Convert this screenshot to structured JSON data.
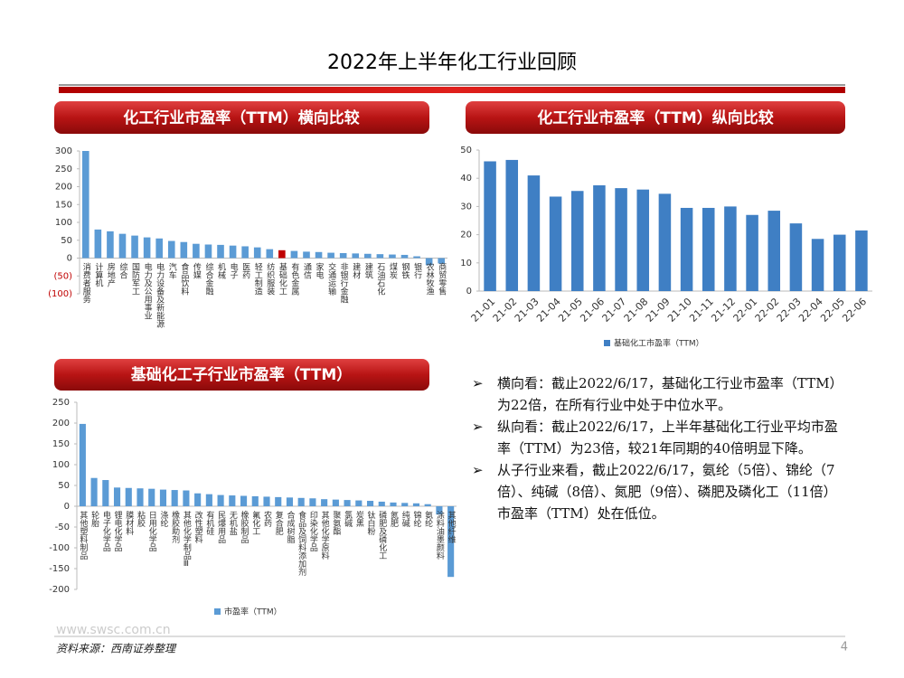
{
  "title": "2022年上半年化工行业回顾",
  "chart_data": [
    {
      "type": "bar",
      "title": "化工行业市盈率（TTM）横向比较",
      "categories": [
        "消费者服务",
        "计算机",
        "房地产",
        "综合",
        "国防军工",
        "电力及公用事业",
        "电力设备及新能源",
        "汽车",
        "食品饮料",
        "传媒",
        "综合金融",
        "机械",
        "电子",
        "医药",
        "轻工制造",
        "纺织服装",
        "基础化工",
        "有色金属",
        "通信",
        "家电",
        "交通运输",
        "非银行金融",
        "建材",
        "建筑",
        "石油石化",
        "煤炭",
        "钢铁",
        "银行",
        "农林牧渔",
        "商贸零售"
      ],
      "values": [
        300,
        80,
        75,
        68,
        63,
        58,
        55,
        48,
        45,
        40,
        38,
        37,
        35,
        33,
        30,
        25,
        22,
        20,
        18,
        17,
        15,
        14,
        13,
        12,
        11,
        10,
        9,
        5,
        -20,
        -15
      ],
      "colors": [
        "#5b9bd5",
        "#5b9bd5",
        "#5b9bd5",
        "#5b9bd5",
        "#5b9bd5",
        "#5b9bd5",
        "#5b9bd5",
        "#5b9bd5",
        "#5b9bd5",
        "#5b9bd5",
        "#5b9bd5",
        "#5b9bd5",
        "#5b9bd5",
        "#5b9bd5",
        "#5b9bd5",
        "#5b9bd5",
        "#c00000",
        "#5b9bd5",
        "#5b9bd5",
        "#5b9bd5",
        "#5b9bd5",
        "#5b9bd5",
        "#5b9bd5",
        "#5b9bd5",
        "#5b9bd5",
        "#5b9bd5",
        "#5b9bd5",
        "#5b9bd5",
        "#5b9bd5",
        "#5b9bd5"
      ],
      "ylim": [
        -100,
        300
      ],
      "yticks": [
        300,
        250,
        200,
        150,
        100,
        50,
        0,
        {
          "value": -50,
          "label": "(50)"
        },
        {
          "value": -100,
          "label": "(100)"
        }
      ],
      "negative_tick_color": "#c00000"
    },
    {
      "type": "bar",
      "title": "化工行业市盈率（TTM）纵向比较",
      "categories": [
        "21-01",
        "21-02",
        "21-03",
        "21-04",
        "21-05",
        "21-06",
        "21-07",
        "21-08",
        "21-09",
        "21-10",
        "21-11",
        "21-12",
        "22-01",
        "22-02",
        "22-03",
        "22-04",
        "22-05",
        "22-06"
      ],
      "series": [
        {
          "name": "基础化工市盈率（TTM）",
          "color": "#3f7fc4",
          "values": [
            46,
            46.5,
            41,
            33.5,
            35.5,
            37.5,
            36.5,
            36,
            34.5,
            29.5,
            29.5,
            30,
            27,
            28.5,
            24,
            18.5,
            20,
            21.5
          ]
        }
      ],
      "ylim": [
        0,
        50
      ],
      "yticks": [
        0,
        10,
        20,
        30,
        40,
        50
      ]
    },
    {
      "type": "bar",
      "title": "基础化工子行业市盈率（TTM）",
      "categories": [
        "其他塑料制品",
        "轮胎",
        "电子化学品",
        "锂电化学品",
        "膜材料",
        "粘胶",
        "日用化学品",
        "涤纶",
        "橡胶助剂",
        "其他化学制品Ⅲ",
        "改性塑料",
        "有机硅",
        "民爆用品",
        "无机盐",
        "橡胶制品",
        "氟化工",
        "农药",
        "复合肥",
        "合成树脂",
        "食品及饲料添加剂",
        "印染化学品",
        "其他化学原料",
        "聚氨酯",
        "氯碱",
        "炭黑",
        "钛白粉",
        "磷肥及磷化工",
        "氮肥",
        "纯碱",
        "锦纶",
        "氨纶",
        "涂料油墨颜料",
        "其他纤维"
      ],
      "series": [
        {
          "name": "市盈率（TTM）",
          "color": "#5b9bd5",
          "values": [
            198,
            68,
            63,
            45,
            44,
            43,
            42,
            40,
            39,
            38,
            31,
            29,
            27,
            26,
            25,
            24,
            23,
            22,
            21,
            20,
            19,
            17,
            16,
            15,
            14,
            13,
            11,
            9,
            8,
            7,
            5,
            -20,
            -170
          ]
        }
      ],
      "ylim": [
        -200,
        250
      ],
      "yticks": [
        250,
        200,
        150,
        100,
        50,
        0,
        -50,
        -100,
        -150,
        -200
      ]
    }
  ],
  "bullets": [
    "横向看：截止2022/6/17，基础化工行业市盈率（TTM）为22倍，在所有行业中处于中位水平。",
    "纵向看：截止2022/6/17，上半年基础化工行业平均市盈率（TTM）为23倍，较21年同期的40倍明显下降。",
    "从子行业来看，截止2022/6/17，氨纶（5倍）、锦纶（7倍）、纯碱（8倍）、氮肥（9倍）、磷肥及磷化工（11倍）市盈率（TTM）处在低位。"
  ],
  "logo": "www.swsc.com.cn",
  "source": "资料来源：西南证券整理",
  "page_number": 4
}
